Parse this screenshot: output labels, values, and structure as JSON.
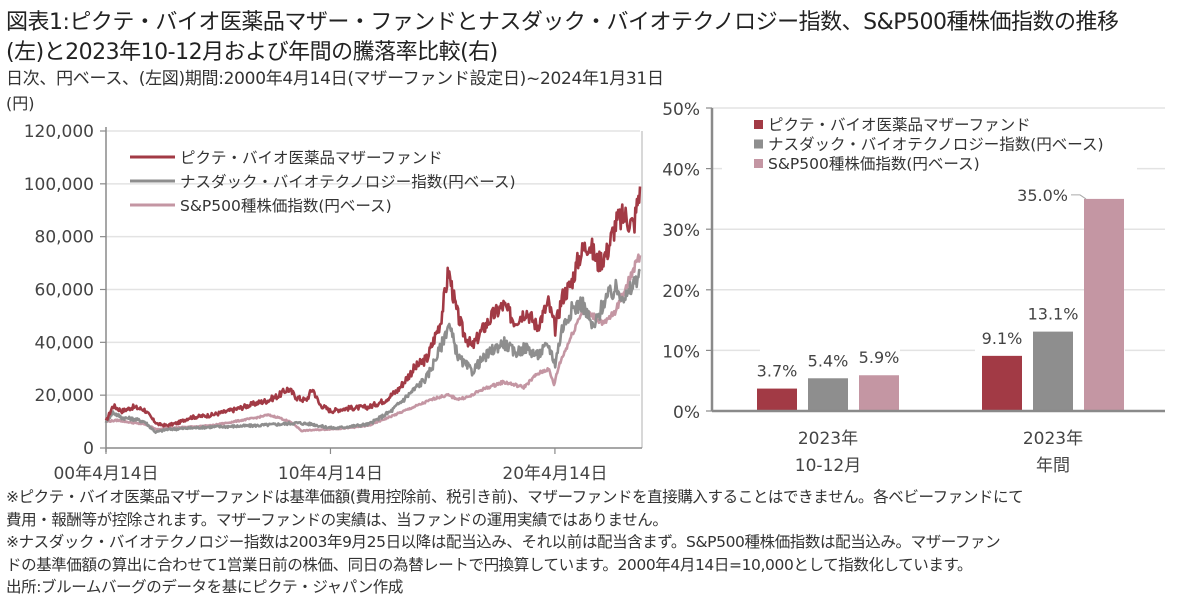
{
  "header": {
    "title_line1": "図表1:ピクテ・バイオ医薬品マザー・ファンドとナスダック・バイオテクノロジー指数、S&P500種株価指数の推移",
    "title_line2": "(左)と2023年10-12月および年間の騰落率比較(右)",
    "subtitle": "日次、円ベース、(左図)期間:2000年4月14日(マザーファンド設定日)~2024年1月31日"
  },
  "colors": {
    "pictet": "#a23a45",
    "nasdaq_bio": "#8e8e8e",
    "sp500": "#c496a3",
    "grid": "#e3e3e3",
    "axis": "#8a8a8a"
  },
  "chart_data": [
    {
      "type": "line",
      "title": "",
      "ylabel": "(円)",
      "xlabel": "",
      "ylim": [
        0,
        120000
      ],
      "xlim": [
        2000.29,
        2024.08
      ],
      "yticks": [
        0,
        20000,
        40000,
        60000,
        80000,
        100000,
        120000
      ],
      "ytick_labels": [
        "0",
        "20,000",
        "40,000",
        "60,000",
        "80,000",
        "100,000",
        "120,000"
      ],
      "xticks": [
        2000.29,
        2010.29,
        2020.29
      ],
      "xtick_labels": [
        "00年4月14日",
        "10年4月14日",
        "20年4月14日"
      ],
      "grid": true,
      "legend_position": "top-left",
      "series": [
        {
          "name": "ピクテ・バイオ医薬品マザーファンド",
          "color_key": "pictet",
          "x": [
            2000.29,
            2000.6,
            2001.0,
            2001.5,
            2002.0,
            2002.4,
            2002.6,
            2003.0,
            2003.5,
            2004.0,
            2005.0,
            2006.0,
            2007.0,
            2007.5,
            2008.0,
            2008.4,
            2008.8,
            2009.2,
            2009.5,
            2009.8,
            2010.3,
            2011.0,
            2012.0,
            2012.7,
            2013.3,
            2014.0,
            2014.6,
            2015.2,
            2015.55,
            2015.9,
            2016.2,
            2016.6,
            2017.0,
            2017.5,
            2018.0,
            2018.5,
            2019.0,
            2019.5,
            2020.0,
            2020.3,
            2020.6,
            2021.0,
            2021.4,
            2021.8,
            2022.2,
            2022.6,
            2023.0,
            2023.4,
            2023.8,
            2024.08
          ],
          "values": [
            10000,
            16000,
            14000,
            15500,
            14500,
            10500,
            9000,
            8500,
            9500,
            11500,
            12500,
            14500,
            17000,
            18000,
            20000,
            22500,
            19000,
            18000,
            22500,
            16500,
            14000,
            15000,
            15500,
            18000,
            22000,
            30000,
            34000,
            48000,
            67000,
            52000,
            44000,
            38000,
            44000,
            50000,
            54000,
            48000,
            52000,
            46000,
            55000,
            45000,
            57000,
            62000,
            73000,
            78000,
            70000,
            74000,
            85000,
            88000,
            84000,
            99000
          ]
        },
        {
          "name": "ナスダック・バイオテクノロジー指数(円ベース)",
          "color_key": "nasdaq_bio",
          "x": [
            2000.29,
            2000.6,
            2001.0,
            2001.5,
            2002.0,
            2002.5,
            2003.0,
            2004.0,
            2005.0,
            2006.0,
            2007.0,
            2008.0,
            2008.8,
            2009.5,
            2010.0,
            2010.5,
            2011.0,
            2012.0,
            2013.0,
            2014.0,
            2014.6,
            2015.2,
            2015.55,
            2016.0,
            2016.6,
            2017.0,
            2017.5,
            2018.0,
            2018.5,
            2019.0,
            2019.5,
            2020.0,
            2020.3,
            2020.6,
            2021.0,
            2021.5,
            2022.0,
            2022.5,
            2023.0,
            2023.5,
            2024.08
          ],
          "values": [
            10000,
            13500,
            11500,
            11000,
            10000,
            6000,
            7000,
            7500,
            8000,
            8200,
            8500,
            9000,
            9500,
            9000,
            8000,
            7500,
            8000,
            9000,
            14000,
            22000,
            27000,
            38000,
            47000,
            34000,
            29000,
            33000,
            37000,
            40000,
            36000,
            38000,
            35000,
            39000,
            32000,
            45000,
            52000,
            55000,
            45000,
            56000,
            60000,
            57000,
            67000
          ]
        },
        {
          "name": "S&P500種株価指数(円ベース)",
          "color_key": "sp500",
          "x": [
            2000.29,
            2000.8,
            2001.5,
            2002.0,
            2002.6,
            2003.0,
            2004.0,
            2005.0,
            2006.0,
            2007.0,
            2007.5,
            2008.0,
            2008.6,
            2009.0,
            2009.5,
            2010.0,
            2011.0,
            2012.0,
            2013.0,
            2014.0,
            2015.0,
            2015.5,
            2016.0,
            2016.5,
            2017.0,
            2018.0,
            2018.9,
            2019.5,
            2020.0,
            2020.25,
            2020.5,
            2021.0,
            2021.5,
            2022.0,
            2022.5,
            2023.0,
            2023.5,
            2024.08
          ],
          "values": [
            10000,
            10500,
            9500,
            9000,
            7000,
            7500,
            8000,
            8500,
            10000,
            11500,
            12500,
            11500,
            9500,
            6500,
            6800,
            7000,
            7500,
            8500,
            12000,
            15500,
            19000,
            20000,
            18500,
            19500,
            22000,
            25000,
            23000,
            28000,
            30000,
            24000,
            32000,
            42000,
            52000,
            50000,
            47000,
            52000,
            62000,
            73000
          ]
        }
      ]
    },
    {
      "type": "bar",
      "title": "",
      "xlabel": "",
      "ylabel": "",
      "ylim": [
        0,
        50
      ],
      "yticks": [
        0,
        10,
        20,
        30,
        40,
        50
      ],
      "ytick_labels": [
        "0%",
        "10%",
        "20%",
        "30%",
        "40%",
        "50%"
      ],
      "grid": true,
      "legend_position": "top-left",
      "categories": [
        [
          "2023年",
          "10-12月"
        ],
        [
          "2023年",
          "年間"
        ]
      ],
      "series": [
        {
          "name": "ピクテ・バイオ医薬品マザーファンド",
          "color_key": "pictet",
          "values": [
            3.7,
            9.1
          ],
          "labels": [
            "3.7%",
            "9.1%"
          ]
        },
        {
          "name": "ナスダック・バイオテクノロジー指数(円ベース)",
          "color_key": "nasdaq_bio",
          "values": [
            5.4,
            13.1
          ],
          "labels": [
            "5.4%",
            "13.1%"
          ]
        },
        {
          "name": "S&P500種株価指数(円ベース)",
          "color_key": "sp500",
          "values": [
            5.9,
            35.0
          ],
          "labels": [
            "5.9%",
            "35.0%"
          ]
        }
      ]
    }
  ],
  "notes": [
    "※ピクテ・バイオ医薬品マザーファンドは基準価額(費用控除前、税引き前)、マザーファンドを直接購入することはできません。各ベビーファンドにて",
    "費用・報酬等が控除されます。マザーファンドの実績は、当ファンドの運用実績ではありません。",
    "※ナスダック・バイオテクノロジー指数は2003年9月25日以降は配当込み、それ以前は配当含まず。S&P500種株価指数は配当込み。マザーファン",
    "ドの基準価額の算出に合わせて1営業日前の株価、同日の為替レートで円換算しています。2000年4月14日=10,000として指数化しています。",
    "出所:ブルームバーグのデータを基にピクテ・ジャパン作成"
  ]
}
